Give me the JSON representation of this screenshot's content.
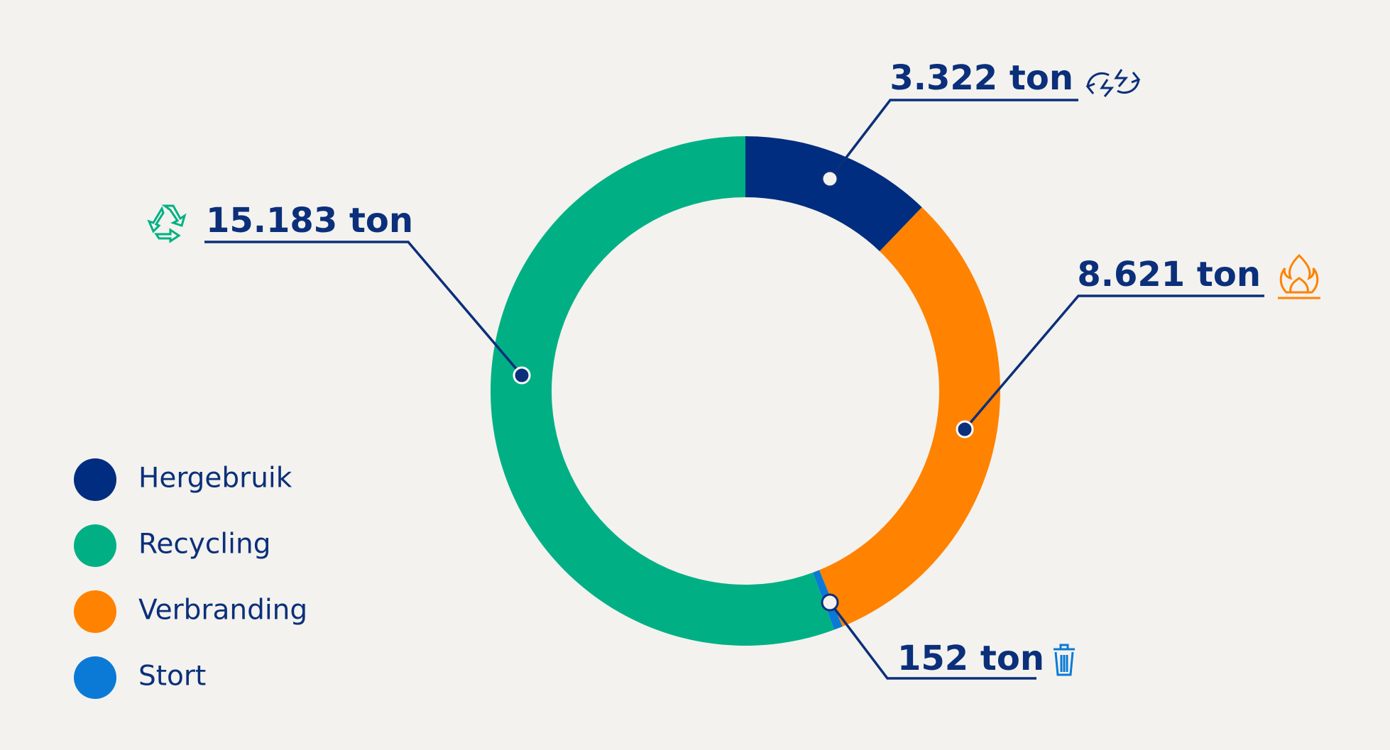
{
  "chart_data": {
    "type": "donut",
    "series": [
      {
        "name": "Hergebruik",
        "color": "#002d7f",
        "values": [
          3322
        ],
        "value_labels": [
          "3.322 ton"
        ]
      },
      {
        "name": "Recycling",
        "color": "#00b084",
        "values": [
          15183
        ],
        "value_labels": [
          "15.183 ton"
        ]
      },
      {
        "name": "Verbranding",
        "color": "#ff8200",
        "values": [
          8621
        ],
        "value_labels": [
          "8.621 ton"
        ]
      },
      {
        "name": "Stort",
        "color": "#0a7ad6",
        "values": [
          152
        ],
        "value_labels": [
          "152 ton"
        ]
      }
    ]
  }
}
